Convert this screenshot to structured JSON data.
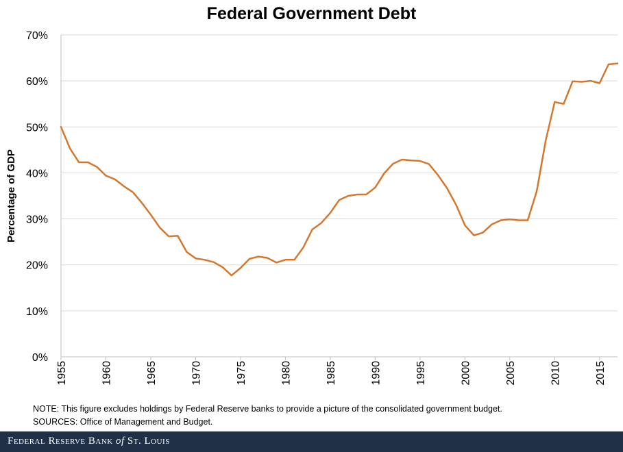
{
  "note": "NOTE: This figure excludes holdings by Federal Reserve banks to provide a picture of the consolidated government budget.",
  "sources": "SOURCES: Office of Management and Budget.",
  "footer": {
    "brand_part1": "Federal Reserve Bank ",
    "brand_of": "of",
    "brand_part2": " St. Louis"
  },
  "chart_data": {
    "type": "line",
    "title": "Federal Government Debt",
    "ylabel": "Percentage of GDP",
    "xlabel": "",
    "xlim": [
      1955,
      2017
    ],
    "ylim": [
      0,
      70
    ],
    "yticks": [
      0,
      10,
      20,
      30,
      40,
      50,
      60,
      70
    ],
    "ytick_labels": [
      "0%",
      "10%",
      "20%",
      "30%",
      "40%",
      "50%",
      "60%",
      "70%"
    ],
    "xticks": [
      1955,
      1960,
      1965,
      1970,
      1975,
      1980,
      1985,
      1990,
      1995,
      2000,
      2005,
      2010,
      2015
    ],
    "xtick_labels": [
      "1955",
      "1960",
      "1965",
      "1970",
      "1975",
      "1980",
      "1985",
      "1990",
      "1995",
      "2000",
      "2005",
      "2010",
      "2015"
    ],
    "grid": "horizontal",
    "series": [
      {
        "color": "#d4772c",
        "x": [
          1955,
          1956,
          1957,
          1958,
          1959,
          1960,
          1961,
          1962,
          1963,
          1964,
          1965,
          1966,
          1967,
          1968,
          1969,
          1970,
          1971,
          1972,
          1973,
          1974,
          1975,
          1976,
          1977,
          1978,
          1979,
          1980,
          1981,
          1982,
          1983,
          1984,
          1985,
          1986,
          1987,
          1988,
          1989,
          1990,
          1991,
          1992,
          1993,
          1994,
          1995,
          1996,
          1997,
          1998,
          1999,
          2000,
          2001,
          2002,
          2003,
          2004,
          2005,
          2006,
          2007,
          2008,
          2009,
          2010,
          2011,
          2012,
          2013,
          2014,
          2015,
          2016,
          2017
        ],
        "y": [
          50.0,
          45.3,
          42.3,
          42.3,
          41.3,
          39.4,
          38.6,
          37.1,
          35.8,
          33.5,
          30.9,
          28.1,
          26.2,
          26.3,
          22.8,
          21.4,
          21.1,
          20.6,
          19.5,
          17.7,
          19.3,
          21.3,
          21.8,
          21.5,
          20.5,
          21.1,
          21.1,
          23.8,
          27.7,
          29.1,
          31.3,
          34.1,
          35.0,
          35.3,
          35.3,
          36.8,
          39.9,
          42.0,
          42.9,
          42.7,
          42.6,
          41.9,
          39.5,
          36.7,
          33.1,
          28.6,
          26.4,
          27.0,
          28.8,
          29.7,
          29.9,
          29.7,
          29.7,
          36.0,
          47.0,
          55.4,
          55.0,
          59.9,
          59.8,
          60.0,
          59.5,
          63.6,
          63.8
        ]
      }
    ]
  }
}
